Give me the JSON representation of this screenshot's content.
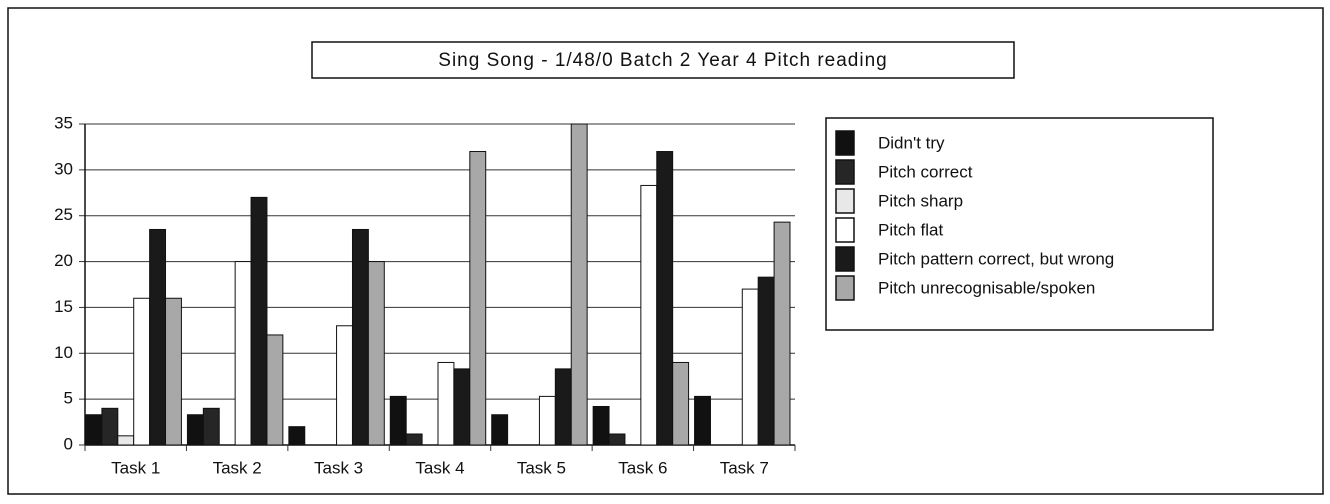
{
  "chart_data": {
    "type": "bar",
    "title": "Sing Song - 1/48/0  Batch 2 Year 4  Pitch reading",
    "categories": [
      "Task 1",
      "Task 2",
      "Task 3",
      "Task 4",
      "Task 5",
      "Task 6",
      "Task 7"
    ],
    "series": [
      {
        "name": "Didn't try",
        "color": "#111111",
        "values": [
          3.3,
          3.3,
          2,
          5.3,
          3.3,
          4.2,
          5.3
        ]
      },
      {
        "name": "Pitch correct",
        "color": "#262626",
        "values": [
          4,
          4,
          0,
          1.2,
          0,
          1.2,
          0
        ]
      },
      {
        "name": "Pitch sharp",
        "color": "#e8e8e8",
        "values": [
          1,
          0,
          0,
          0,
          0,
          0,
          0
        ]
      },
      {
        "name": "Pitch flat",
        "color": "#ffffff",
        "values": [
          16,
          20,
          13,
          9,
          5.3,
          28.3,
          17
        ]
      },
      {
        "name": "Pitch pattern correct, but wrong",
        "color": "#1a1a1a",
        "values": [
          23.5,
          27,
          23.5,
          8.3,
          8.3,
          32,
          18.3
        ]
      },
      {
        "name": "Pitch unrecognisable/spoken",
        "color": "#a8a8a8",
        "values": [
          16,
          12,
          20,
          32,
          35,
          9,
          24.3
        ]
      }
    ],
    "ylim": [
      0,
      35
    ],
    "yticks": [
      0,
      5,
      10,
      15,
      20,
      25,
      30,
      35
    ],
    "grid": true,
    "legend": "right"
  }
}
